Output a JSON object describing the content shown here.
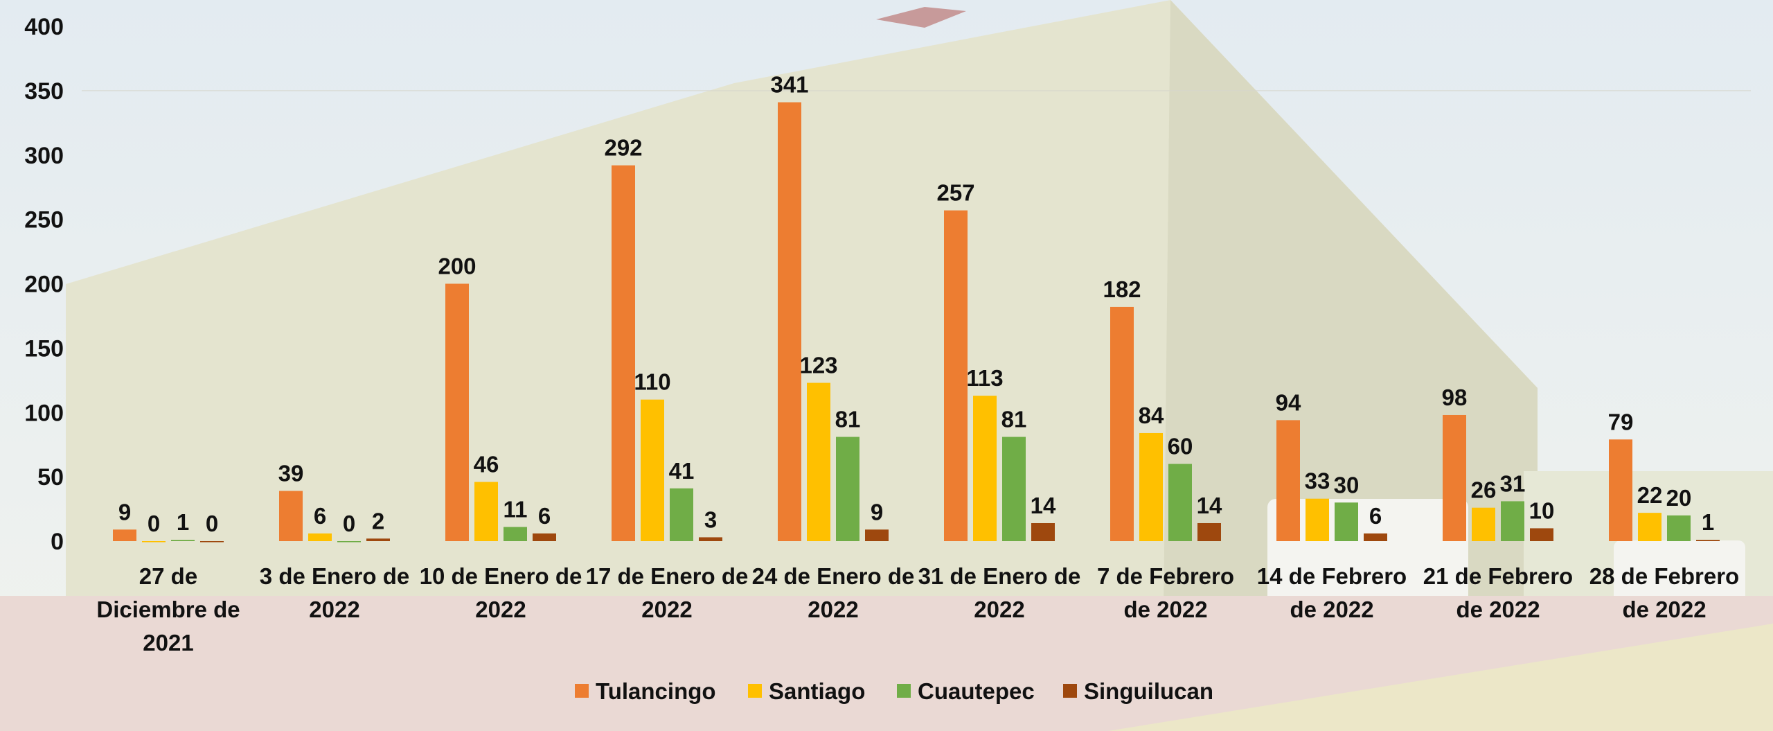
{
  "colors": {
    "Tulancingo": "#ed7d31",
    "Santiago": "#ffc000",
    "Cuautepec": "#70ad47",
    "Singuilucan": "#9e480e"
  },
  "chart_data": {
    "type": "bar",
    "title": "",
    "xlabel": "",
    "ylabel": "",
    "ylim": [
      0,
      400
    ],
    "yticks": [
      0,
      50,
      100,
      150,
      200,
      250,
      300,
      350,
      400
    ],
    "grid": true,
    "legend": "bottom-center",
    "categories": [
      [
        "27 de",
        "Diciembre de",
        "2021"
      ],
      [
        "3 de Enero de",
        "2022"
      ],
      [
        "10 de Enero de",
        "2022"
      ],
      [
        "17 de Enero de",
        "2022"
      ],
      [
        "24 de Enero de",
        "2022"
      ],
      [
        "31 de Enero de",
        "2022"
      ],
      [
        "7 de Febrero",
        "de 2022"
      ],
      [
        "14 de Febrero",
        "de 2022"
      ],
      [
        "21 de Febrero",
        "de 2022"
      ],
      [
        "28 de Febrero",
        "de 2022"
      ]
    ],
    "series": [
      {
        "name": "Tulancingo",
        "values": [
          9,
          39,
          200,
          292,
          341,
          257,
          182,
          94,
          98,
          79
        ]
      },
      {
        "name": "Santiago",
        "values": [
          0,
          6,
          46,
          110,
          123,
          113,
          84,
          33,
          26,
          22
        ]
      },
      {
        "name": "Cuautepec",
        "values": [
          1,
          0,
          11,
          41,
          81,
          81,
          60,
          30,
          31,
          20
        ]
      },
      {
        "name": "Singuilucan",
        "values": [
          0,
          2,
          6,
          3,
          9,
          14,
          14,
          6,
          10,
          1
        ]
      }
    ]
  }
}
